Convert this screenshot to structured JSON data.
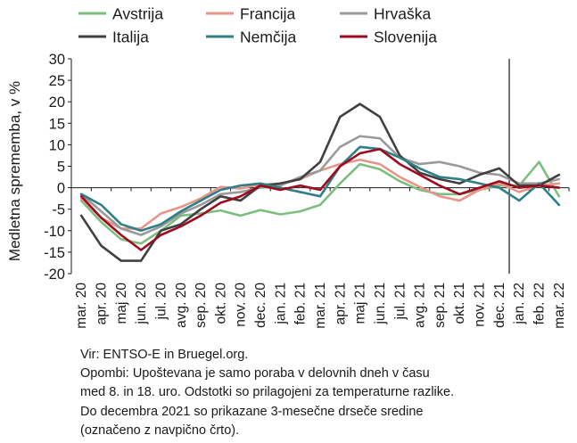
{
  "chart_data": {
    "type": "line",
    "ylabel": "Medletna sprememba, v %",
    "ylim": [
      -20,
      30
    ],
    "yticks": [
      -20,
      -15,
      -10,
      -5,
      0,
      5,
      10,
      15,
      20,
      25,
      30
    ],
    "grid": false,
    "legend_position": "top",
    "categories": [
      "mar. 20",
      "apr. 20",
      "maj 20",
      "jun. 20",
      "jul. 20",
      "avg. 20",
      "sep. 20",
      "okt. 20",
      "nov. 20",
      "dec. 20",
      "jan. 21",
      "feb. 21",
      "mar. 21",
      "apr. 21",
      "maj 21",
      "jun. 21",
      "jul. 21",
      "avg. 21",
      "sep. 21",
      "okt. 21",
      "nov. 21",
      "dec. 21",
      "jan. 22",
      "feb. 22",
      "mar. 22"
    ],
    "vertical_line_after": "dec. 21",
    "series": [
      {
        "name": "Avstrija",
        "color": "#7dbe7f",
        "values": [
          -3,
          -8,
          -12,
          -13,
          -10,
          -6.5,
          -6,
          -5.3,
          -6.5,
          -5.2,
          -6.2,
          -5.5,
          -4,
          1,
          5.5,
          4.3,
          1.5,
          -0.5,
          -1.5,
          -1.5,
          -0.5,
          0.5,
          0.5,
          6,
          -2
        ]
      },
      {
        "name": "Francija",
        "color": "#e8948a",
        "values": [
          -2.5,
          -7,
          -9.5,
          -9.5,
          -6,
          -4.5,
          -2.5,
          0.2,
          -0.2,
          0.8,
          0.8,
          2,
          4,
          5.5,
          6.5,
          5.5,
          2.5,
          0.2,
          -2,
          -3,
          -0.5,
          1,
          -1,
          0.5,
          1
        ]
      },
      {
        "name": "Hrvaška",
        "color": "#9a9a9a",
        "values": [
          -1.5,
          -5.5,
          -9.5,
          -11,
          -9,
          -6,
          -4,
          -1.5,
          -1,
          0,
          0.5,
          2.5,
          4,
          9.5,
          12,
          11.5,
          7,
          5.5,
          6,
          5,
          3.5,
          3,
          1,
          1,
          2
        ]
      },
      {
        "name": "Italija",
        "color": "#404040",
        "values": [
          -6.5,
          -13.5,
          -17,
          -17,
          -10,
          -8.5,
          -5,
          -2,
          -3,
          0.5,
          1,
          2,
          6,
          16.5,
          19.5,
          16.5,
          7.5,
          3.5,
          2,
          1,
          3,
          4.5,
          0.5,
          0.5,
          3
        ]
      },
      {
        "name": "Nemčija",
        "color": "#2e7f86",
        "values": [
          -1.5,
          -4,
          -8.5,
          -10,
          -8.5,
          -5.5,
          -3,
          -0.5,
          0.5,
          1,
          0,
          -1,
          -2,
          5,
          9.5,
          9,
          7,
          4.5,
          2.5,
          2,
          1,
          0,
          -3,
          1,
          -4
        ]
      },
      {
        "name": "Slovenija",
        "color": "#9e0b1f",
        "values": [
          -2,
          -7,
          -11,
          -14.5,
          -11,
          -9,
          -6.5,
          -3.5,
          -2,
          0.5,
          -0.5,
          0.5,
          -0.5,
          5,
          8,
          9,
          5.5,
          3,
          0.5,
          -1.5,
          0,
          1.5,
          0,
          0.5,
          0
        ]
      }
    ]
  },
  "notes": [
    "Vir: ENTSO-E in Bruegel.org.",
    "Opombi: Upoštevana je samo poraba v delovnih dneh v času",
    "med 8. in 18. uro. Odstotki so prilagojeni za temperaturne razlike.",
    "Do decembra 2021 so prikazane 3-mesečne drseče sredine",
    "(označeno z navpično črto)."
  ]
}
